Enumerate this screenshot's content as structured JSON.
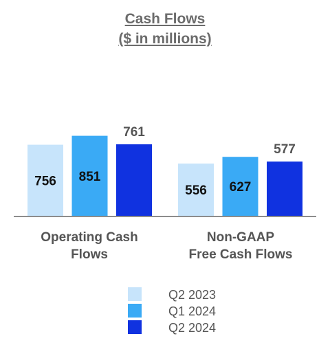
{
  "title_line1": "Cash Flows",
  "title_line2": "($ in millions)",
  "chart_data": {
    "type": "bar",
    "categories": [
      "Operating Cash Flows",
      "Non-GAAP Free Cash Flows"
    ],
    "category_lines": [
      [
        "Operating Cash",
        "Flows"
      ],
      [
        "Non-GAAP",
        "Free Cash Flows"
      ]
    ],
    "series": [
      {
        "name": "Q2 2023",
        "color": "#c7e4fb",
        "values": [
          756,
          556
        ]
      },
      {
        "name": "Q1 2024",
        "color": "#3aaaf5",
        "values": [
          851,
          627
        ]
      },
      {
        "name": "Q2 2024",
        "color": "#1032e0",
        "values": [
          761,
          577
        ]
      }
    ],
    "ylim": [
      0,
      1000
    ],
    "grid": false,
    "legend_position": "bottom"
  }
}
